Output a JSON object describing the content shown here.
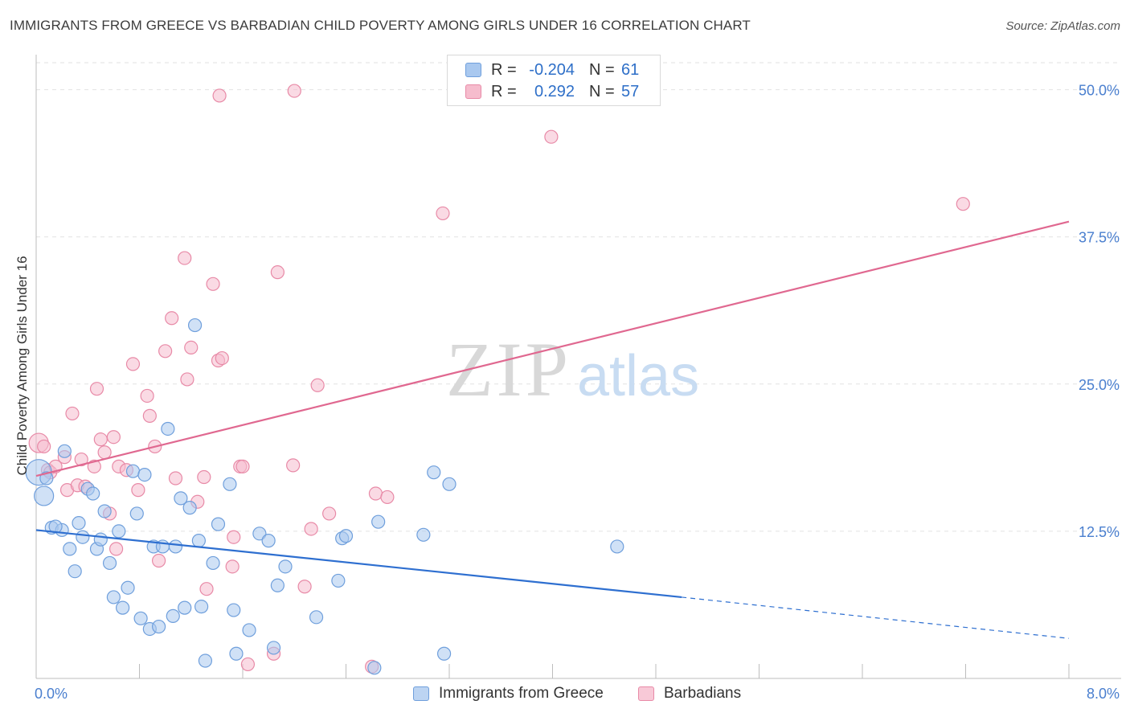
{
  "title": "IMMIGRANTS FROM GREECE VS BARBADIAN CHILD POVERTY AMONG GIRLS UNDER 16 CORRELATION CHART",
  "source": "Source: ZipAtlas.com",
  "watermark": {
    "zip": "ZIP",
    "atlas": "atlas"
  },
  "legend": {
    "r_label": "R =",
    "n_label": "N =",
    "series": [
      {
        "name": "Immigrants from Greece",
        "r": "-0.204",
        "n": "61"
      },
      {
        "name": "Barbadians",
        "r": "0.292",
        "n": "57"
      }
    ]
  },
  "colors": {
    "blue_fill": "#a9c8ef",
    "blue_stroke": "#6f9fdc",
    "blue_line": "#2e6fd0",
    "pink_fill": "#f6bccd",
    "pink_stroke": "#e88aa7",
    "pink_line": "#e06890",
    "axis_text": "#4a7fcf",
    "grid": "#e2e2e2"
  },
  "chart_data": {
    "type": "scatter",
    "title": "IMMIGRANTS FROM GREECE VS BARBADIAN CHILD POVERTY AMONG GIRLS UNDER 16 CORRELATION CHART",
    "xlabel": "",
    "ylabel": "Child Poverty Among Girls Under 16",
    "xlim": [
      0,
      8
    ],
    "ylim": [
      0,
      52.5
    ],
    "x_tick_labels": [
      "0.0%",
      "8.0%"
    ],
    "y_ticks": [
      12.5,
      25.0,
      37.5,
      50.0
    ],
    "y_tick_labels": [
      "12.5%",
      "25.0%",
      "37.5%",
      "50.0%"
    ],
    "series": [
      {
        "name": "Immigrants from Greece",
        "color": "blue",
        "trend": {
          "x0": 0.0,
          "y0": 12.6,
          "x1": 5.0,
          "y1": 6.9,
          "dash_to_x": 8.0,
          "dash_to_y": 3.4
        },
        "points": [
          {
            "x": 0.02,
            "y": 17.5,
            "s": 3
          },
          {
            "x": 0.06,
            "y": 15.5,
            "s": 2
          },
          {
            "x": 0.08,
            "y": 17.0,
            "s": 1
          },
          {
            "x": 0.22,
            "y": 19.3,
            "s": 1
          },
          {
            "x": 0.12,
            "y": 12.8,
            "s": 1
          },
          {
            "x": 0.2,
            "y": 12.6,
            "s": 1
          },
          {
            "x": 0.15,
            "y": 12.9,
            "s": 1
          },
          {
            "x": 0.26,
            "y": 11.0,
            "s": 1
          },
          {
            "x": 0.3,
            "y": 9.1,
            "s": 1
          },
          {
            "x": 0.33,
            "y": 13.2,
            "s": 1
          },
          {
            "x": 0.36,
            "y": 12.0,
            "s": 1
          },
          {
            "x": 0.4,
            "y": 16.1,
            "s": 1
          },
          {
            "x": 0.44,
            "y": 15.7,
            "s": 1
          },
          {
            "x": 0.47,
            "y": 11.0,
            "s": 1
          },
          {
            "x": 0.5,
            "y": 11.8,
            "s": 1
          },
          {
            "x": 0.53,
            "y": 14.2,
            "s": 1
          },
          {
            "x": 0.57,
            "y": 9.8,
            "s": 1
          },
          {
            "x": 0.6,
            "y": 6.9,
            "s": 1
          },
          {
            "x": 0.64,
            "y": 12.5,
            "s": 1
          },
          {
            "x": 0.67,
            "y": 6.0,
            "s": 1
          },
          {
            "x": 0.71,
            "y": 7.7,
            "s": 1
          },
          {
            "x": 0.75,
            "y": 17.6,
            "s": 1
          },
          {
            "x": 0.78,
            "y": 14.0,
            "s": 1
          },
          {
            "x": 0.81,
            "y": 5.1,
            "s": 1
          },
          {
            "x": 0.84,
            "y": 17.3,
            "s": 1
          },
          {
            "x": 0.88,
            "y": 4.2,
            "s": 1
          },
          {
            "x": 0.91,
            "y": 11.2,
            "s": 1
          },
          {
            "x": 0.95,
            "y": 4.4,
            "s": 1
          },
          {
            "x": 0.98,
            "y": 11.2,
            "s": 1
          },
          {
            "x": 1.02,
            "y": 21.2,
            "s": 1
          },
          {
            "x": 1.06,
            "y": 5.3,
            "s": 1
          },
          {
            "x": 1.08,
            "y": 11.2,
            "s": 1
          },
          {
            "x": 1.12,
            "y": 15.3,
            "s": 1
          },
          {
            "x": 1.15,
            "y": 6.0,
            "s": 1
          },
          {
            "x": 1.19,
            "y": 14.5,
            "s": 1
          },
          {
            "x": 1.23,
            "y": 30.0,
            "s": 1
          },
          {
            "x": 1.26,
            "y": 11.7,
            "s": 1
          },
          {
            "x": 1.28,
            "y": 6.1,
            "s": 1
          },
          {
            "x": 1.31,
            "y": 1.5,
            "s": 1
          },
          {
            "x": 1.37,
            "y": 9.8,
            "s": 1
          },
          {
            "x": 1.41,
            "y": 13.1,
            "s": 1
          },
          {
            "x": 1.5,
            "y": 16.5,
            "s": 1
          },
          {
            "x": 1.53,
            "y": 5.8,
            "s": 1
          },
          {
            "x": 1.55,
            "y": 2.1,
            "s": 1
          },
          {
            "x": 1.65,
            "y": 4.1,
            "s": 1
          },
          {
            "x": 1.73,
            "y": 12.3,
            "s": 1
          },
          {
            "x": 1.8,
            "y": 11.7,
            "s": 1
          },
          {
            "x": 1.84,
            "y": 2.6,
            "s": 1
          },
          {
            "x": 1.87,
            "y": 7.9,
            "s": 1
          },
          {
            "x": 1.93,
            "y": 9.5,
            "s": 1
          },
          {
            "x": 2.17,
            "y": 5.2,
            "s": 1
          },
          {
            "x": 2.34,
            "y": 8.3,
            "s": 1
          },
          {
            "x": 2.37,
            "y": 11.9,
            "s": 1
          },
          {
            "x": 2.4,
            "y": 12.1,
            "s": 1
          },
          {
            "x": 2.62,
            "y": 0.9,
            "s": 1
          },
          {
            "x": 2.65,
            "y": 13.3,
            "s": 1
          },
          {
            "x": 3.0,
            "y": 12.2,
            "s": 1
          },
          {
            "x": 3.08,
            "y": 17.5,
            "s": 1
          },
          {
            "x": 3.16,
            "y": 2.1,
            "s": 1
          },
          {
            "x": 3.2,
            "y": 16.5,
            "s": 1
          },
          {
            "x": 4.5,
            "y": 11.2,
            "s": 1
          }
        ]
      },
      {
        "name": "Barbadians",
        "color": "pink",
        "trend": {
          "x0": 0.0,
          "y0": 17.2,
          "x1": 8.0,
          "y1": 38.8
        },
        "points": [
          {
            "x": 0.02,
            "y": 20.0,
            "s": 2
          },
          {
            "x": 0.06,
            "y": 19.7,
            "s": 1
          },
          {
            "x": 0.09,
            "y": 17.7,
            "s": 1
          },
          {
            "x": 0.11,
            "y": 17.5,
            "s": 1
          },
          {
            "x": 0.15,
            "y": 18.0,
            "s": 1
          },
          {
            "x": 0.22,
            "y": 18.8,
            "s": 1
          },
          {
            "x": 0.24,
            "y": 16.0,
            "s": 1
          },
          {
            "x": 0.28,
            "y": 22.5,
            "s": 1
          },
          {
            "x": 0.32,
            "y": 16.4,
            "s": 1
          },
          {
            "x": 0.35,
            "y": 18.6,
            "s": 1
          },
          {
            "x": 0.38,
            "y": 16.3,
            "s": 1
          },
          {
            "x": 0.45,
            "y": 18.0,
            "s": 1
          },
          {
            "x": 0.47,
            "y": 24.6,
            "s": 1
          },
          {
            "x": 0.5,
            "y": 20.3,
            "s": 1
          },
          {
            "x": 0.53,
            "y": 19.2,
            "s": 1
          },
          {
            "x": 0.57,
            "y": 14.0,
            "s": 1
          },
          {
            "x": 0.6,
            "y": 20.5,
            "s": 1
          },
          {
            "x": 0.62,
            "y": 11.0,
            "s": 1
          },
          {
            "x": 0.64,
            "y": 18.0,
            "s": 1
          },
          {
            "x": 0.7,
            "y": 17.7,
            "s": 1
          },
          {
            "x": 0.75,
            "y": 26.7,
            "s": 1
          },
          {
            "x": 0.79,
            "y": 16.0,
            "s": 1
          },
          {
            "x": 0.86,
            "y": 24.0,
            "s": 1
          },
          {
            "x": 0.88,
            "y": 22.3,
            "s": 1
          },
          {
            "x": 0.92,
            "y": 19.7,
            "s": 1
          },
          {
            "x": 0.95,
            "y": 10.0,
            "s": 1
          },
          {
            "x": 1.0,
            "y": 27.8,
            "s": 1
          },
          {
            "x": 1.05,
            "y": 30.6,
            "s": 1
          },
          {
            "x": 1.08,
            "y": 17.0,
            "s": 1
          },
          {
            "x": 1.15,
            "y": 35.7,
            "s": 1
          },
          {
            "x": 1.17,
            "y": 25.4,
            "s": 1
          },
          {
            "x": 1.2,
            "y": 28.1,
            "s": 1
          },
          {
            "x": 1.25,
            "y": 15.0,
            "s": 1
          },
          {
            "x": 1.3,
            "y": 17.1,
            "s": 1
          },
          {
            "x": 1.32,
            "y": 7.6,
            "s": 1
          },
          {
            "x": 1.37,
            "y": 33.5,
            "s": 1
          },
          {
            "x": 1.41,
            "y": 27.0,
            "s": 1
          },
          {
            "x": 1.44,
            "y": 27.2,
            "s": 1
          },
          {
            "x": 1.52,
            "y": 9.5,
            "s": 1
          },
          {
            "x": 1.53,
            "y": 12.0,
            "s": 1
          },
          {
            "x": 1.58,
            "y": 18.0,
            "s": 1
          },
          {
            "x": 1.6,
            "y": 18.0,
            "s": 1
          },
          {
            "x": 1.64,
            "y": 1.2,
            "s": 1
          },
          {
            "x": 1.84,
            "y": 2.1,
            "s": 1
          },
          {
            "x": 1.87,
            "y": 34.5,
            "s": 1
          },
          {
            "x": 1.99,
            "y": 18.1,
            "s": 1
          },
          {
            "x": 2.0,
            "y": 49.9,
            "s": 1
          },
          {
            "x": 2.08,
            "y": 7.8,
            "s": 1
          },
          {
            "x": 2.13,
            "y": 12.7,
            "s": 1
          },
          {
            "x": 2.18,
            "y": 24.9,
            "s": 1
          },
          {
            "x": 2.27,
            "y": 14.0,
            "s": 1
          },
          {
            "x": 2.6,
            "y": 1.0,
            "s": 1
          },
          {
            "x": 2.63,
            "y": 15.7,
            "s": 1
          },
          {
            "x": 2.72,
            "y": 15.4,
            "s": 1
          },
          {
            "x": 3.15,
            "y": 39.5,
            "s": 1
          },
          {
            "x": 1.42,
            "y": 49.5,
            "s": 1
          },
          {
            "x": 3.99,
            "y": 46.0,
            "s": 1
          },
          {
            "x": 7.18,
            "y": 40.3,
            "s": 1
          }
        ]
      }
    ]
  }
}
